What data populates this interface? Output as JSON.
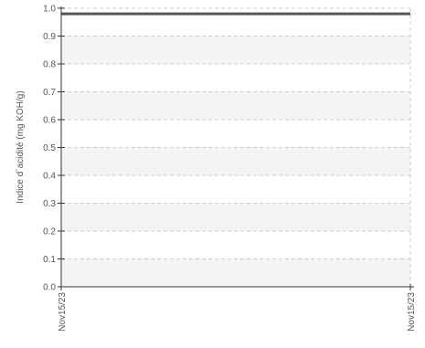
{
  "chart_data": {
    "type": "line",
    "title": "",
    "xlabel": "",
    "ylabel": "Indice d`acidité (mg KOH/g)",
    "x_ticks": [
      "Nov15/23",
      "Nov15/23"
    ],
    "y_ticks": [
      "0.0",
      "0.1",
      "0.2",
      "0.3",
      "0.4",
      "0.5",
      "0.6",
      "0.7",
      "0.8",
      "0.9",
      "1.0"
    ],
    "ylim": [
      0,
      1
    ],
    "series": [
      {
        "points": [
          {
            "x": "Nov15/23",
            "y": 0.98
          },
          {
            "x": "Nov15/23",
            "y": 0.98
          }
        ]
      }
    ],
    "grid": true,
    "legend": "none",
    "colors": {
      "line": "#555555",
      "axis": "#333333",
      "grid": "#cccccc",
      "band": "#f4f4f4"
    }
  }
}
